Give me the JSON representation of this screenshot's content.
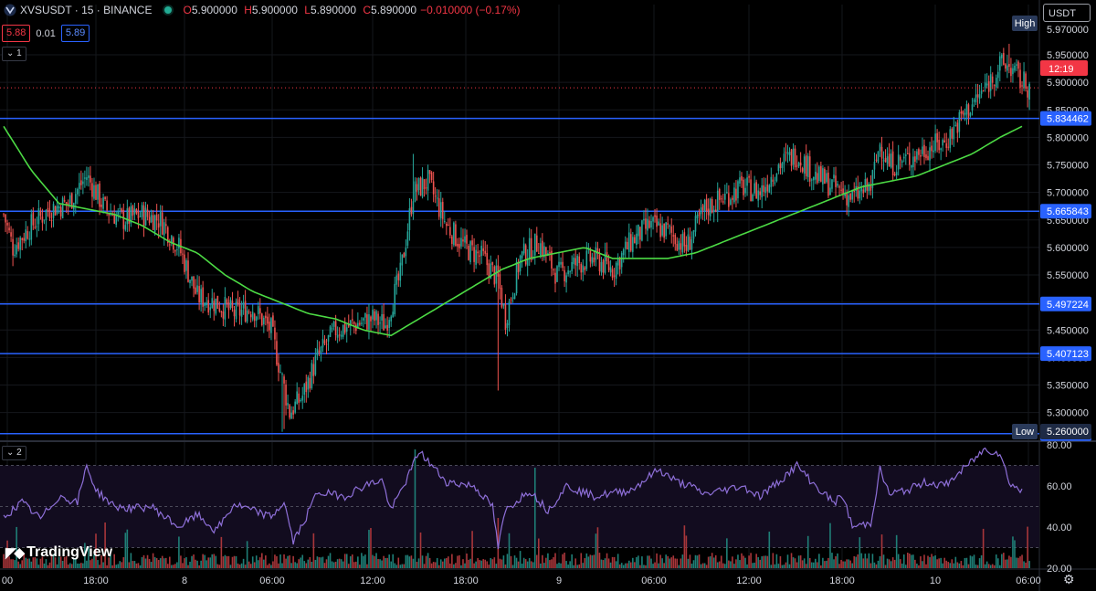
{
  "header": {
    "symbol": "XVSUSDT · 15 · BINANCE",
    "open": "5.900000",
    "high": "5.900000",
    "low": "5.890000",
    "close": "5.890000",
    "change": "−0.010000 (−0.17%)",
    "bid": "5.88",
    "spread": "0.01",
    "ask": "5.89"
  },
  "indicators": {
    "pane1_label": "1",
    "pane2_label": "2"
  },
  "currency": "USDT",
  "branding": "TradingView",
  "colors": {
    "up": "#26a69a",
    "down": "#ef5350",
    "ma": "#4cda44",
    "rsi": "#7e57c2",
    "level": "#2962ff",
    "bg": "#000000"
  },
  "chart_data": {
    "type": "candlestick",
    "price_axis": {
      "ticks": [
        "5.950000",
        "5.900000",
        "5.850000",
        "5.800000",
        "5.750000",
        "5.700000",
        "5.650000",
        "5.600000",
        "5.550000",
        "5.500000",
        "5.450000",
        "5.400000",
        "5.350000",
        "5.300000"
      ],
      "range": [
        5.25,
        5.97
      ]
    },
    "time_axis": [
      "00",
      "18:00",
      "8",
      "06:00",
      "12:00",
      "18:00",
      "9",
      "06:00",
      "12:00",
      "18:00",
      "10",
      "06:00"
    ],
    "horizontal_levels": [
      "5.834462",
      "5.665843",
      "5.497224",
      "5.407123",
      "5.261673"
    ],
    "high_label": "High",
    "high_value": "5.970000",
    "low_label": "Low",
    "low_value": "5.260000",
    "last_price_countdown": "12:19",
    "last_price": 5.89,
    "rsi_axis": [
      "80.00",
      "60.00",
      "40.00",
      "20.00"
    ],
    "rsi_bands": [
      70,
      50,
      30
    ],
    "price_anchors": [
      [
        0,
        5.66
      ],
      [
        5,
        5.6
      ],
      [
        15,
        5.64
      ],
      [
        25,
        5.67
      ],
      [
        35,
        5.68
      ],
      [
        45,
        5.73
      ],
      [
        55,
        5.67
      ],
      [
        65,
        5.65
      ],
      [
        75,
        5.66
      ],
      [
        85,
        5.65
      ],
      [
        95,
        5.6
      ],
      [
        105,
        5.51
      ],
      [
        115,
        5.5
      ],
      [
        125,
        5.48
      ],
      [
        135,
        5.49
      ],
      [
        145,
        5.45
      ],
      [
        155,
        5.3
      ],
      [
        162,
        5.33
      ],
      [
        170,
        5.4
      ],
      [
        180,
        5.45
      ],
      [
        190,
        5.46
      ],
      [
        200,
        5.47
      ],
      [
        207,
        5.46
      ],
      [
        215,
        5.55
      ],
      [
        222,
        5.7
      ],
      [
        230,
        5.72
      ],
      [
        240,
        5.64
      ],
      [
        250,
        5.6
      ],
      [
        260,
        5.58
      ],
      [
        268,
        5.54
      ],
      [
        272,
        5.47
      ],
      [
        280,
        5.58
      ],
      [
        290,
        5.61
      ],
      [
        300,
        5.55
      ],
      [
        310,
        5.57
      ],
      [
        320,
        5.58
      ],
      [
        330,
        5.56
      ],
      [
        340,
        5.61
      ],
      [
        350,
        5.64
      ],
      [
        360,
        5.63
      ],
      [
        370,
        5.6
      ],
      [
        380,
        5.67
      ],
      [
        390,
        5.69
      ],
      [
        400,
        5.71
      ],
      [
        410,
        5.7
      ],
      [
        420,
        5.75
      ],
      [
        430,
        5.77
      ],
      [
        440,
        5.73
      ],
      [
        450,
        5.71
      ],
      [
        460,
        5.69
      ],
      [
        470,
        5.71
      ],
      [
        475,
        5.79
      ],
      [
        480,
        5.75
      ],
      [
        490,
        5.76
      ],
      [
        500,
        5.78
      ],
      [
        510,
        5.79
      ],
      [
        520,
        5.84
      ],
      [
        530,
        5.88
      ],
      [
        540,
        5.93
      ],
      [
        545,
        5.93
      ],
      [
        552,
        5.9
      ],
      [
        557,
        5.89
      ]
    ],
    "ma_anchors": [
      [
        0,
        5.82
      ],
      [
        15,
        5.74
      ],
      [
        30,
        5.68
      ],
      [
        45,
        5.67
      ],
      [
        60,
        5.66
      ],
      [
        75,
        5.64
      ],
      [
        90,
        5.61
      ],
      [
        105,
        5.59
      ],
      [
        120,
        5.55
      ],
      [
        135,
        5.52
      ],
      [
        150,
        5.5
      ],
      [
        165,
        5.48
      ],
      [
        180,
        5.47
      ],
      [
        195,
        5.45
      ],
      [
        210,
        5.44
      ],
      [
        225,
        5.47
      ],
      [
        240,
        5.5
      ],
      [
        255,
        5.53
      ],
      [
        270,
        5.56
      ],
      [
        285,
        5.58
      ],
      [
        300,
        5.59
      ],
      [
        315,
        5.6
      ],
      [
        330,
        5.58
      ],
      [
        345,
        5.58
      ],
      [
        360,
        5.58
      ],
      [
        375,
        5.59
      ],
      [
        390,
        5.61
      ],
      [
        405,
        5.63
      ],
      [
        420,
        5.65
      ],
      [
        435,
        5.67
      ],
      [
        450,
        5.69
      ],
      [
        465,
        5.71
      ],
      [
        480,
        5.72
      ],
      [
        495,
        5.73
      ],
      [
        510,
        5.75
      ],
      [
        525,
        5.77
      ],
      [
        540,
        5.8
      ],
      [
        552,
        5.82
      ]
    ],
    "rsi_anchors": [
      [
        0,
        45
      ],
      [
        10,
        52
      ],
      [
        20,
        44
      ],
      [
        30,
        55
      ],
      [
        40,
        52
      ],
      [
        45,
        70
      ],
      [
        50,
        58
      ],
      [
        60,
        50
      ],
      [
        70,
        49
      ],
      [
        80,
        50
      ],
      [
        95,
        40
      ],
      [
        105,
        46
      ],
      [
        115,
        38
      ],
      [
        125,
        51
      ],
      [
        135,
        48
      ],
      [
        145,
        45
      ],
      [
        152,
        52
      ],
      [
        157,
        33
      ],
      [
        162,
        41
      ],
      [
        170,
        57
      ],
      [
        185,
        55
      ],
      [
        195,
        60
      ],
      [
        205,
        63
      ],
      [
        210,
        48
      ],
      [
        220,
        66
      ],
      [
        225,
        77
      ],
      [
        232,
        70
      ],
      [
        240,
        62
      ],
      [
        255,
        60
      ],
      [
        265,
        50
      ],
      [
        268,
        30
      ],
      [
        272,
        48
      ],
      [
        285,
        58
      ],
      [
        295,
        48
      ],
      [
        305,
        60
      ],
      [
        320,
        55
      ],
      [
        340,
        58
      ],
      [
        355,
        68
      ],
      [
        365,
        62
      ],
      [
        372,
        60
      ],
      [
        380,
        56
      ],
      [
        390,
        58
      ],
      [
        400,
        60
      ],
      [
        410,
        55
      ],
      [
        420,
        62
      ],
      [
        430,
        70
      ],
      [
        440,
        60
      ],
      [
        450,
        52
      ],
      [
        455,
        55
      ],
      [
        460,
        40
      ],
      [
        470,
        42
      ],
      [
        475,
        68
      ],
      [
        480,
        56
      ],
      [
        490,
        58
      ],
      [
        500,
        62
      ],
      [
        510,
        60
      ],
      [
        520,
        68
      ],
      [
        532,
        78
      ],
      [
        540,
        76
      ],
      [
        545,
        62
      ],
      [
        552,
        57
      ]
    ],
    "note_values_estimated": "OHLC, MA and RSI paths read approximately from the chart"
  }
}
